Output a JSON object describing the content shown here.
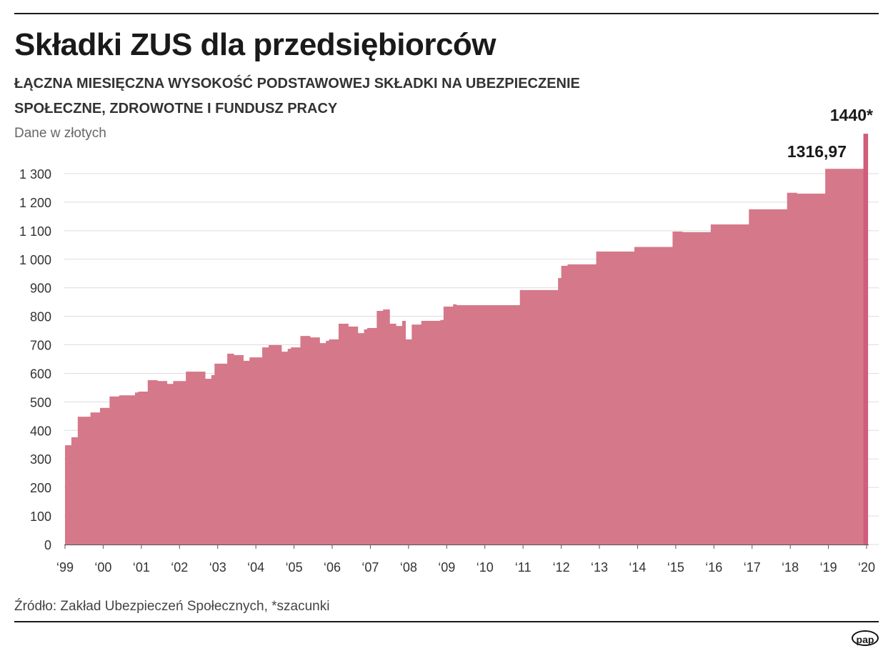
{
  "title": "Składki ZUS dla przedsiębiorców",
  "subtitle_line1": "ŁĄCZNA MIESIĘCZNA WYSOKOŚĆ PODSTAWOWEJ SKŁADKI NA UBEZPIECZENIE",
  "subtitle_line2": "SPOŁECZNE, ZDROWOTNE I FUNDUSZ PRACY",
  "unit": "Dane w złotych",
  "source": "Źródło: Zakład Ubezpieczeń Społecznych, *szacunki",
  "logo": "pap",
  "colors": {
    "fill": "#d5788a",
    "highlight": "#d05d7b",
    "grid": "#dddddd"
  },
  "chart_data": {
    "type": "area",
    "step": true,
    "ylim": [
      0,
      1300
    ],
    "yticks": [
      0,
      100,
      200,
      300,
      400,
      500,
      600,
      700,
      800,
      900,
      1000,
      1100,
      1200,
      1300
    ],
    "ytick_labels": [
      "0",
      "100",
      "200",
      "300",
      "400",
      "500",
      "600",
      "700",
      "800",
      "900",
      "1 000",
      "1 100",
      "1 200",
      "1 300"
    ],
    "xtick_labels": [
      "‘99",
      "‘00",
      "‘01",
      "‘02",
      "‘03",
      "‘04",
      "‘05",
      "‘06",
      "‘07",
      "‘08",
      "‘09",
      "‘10",
      "‘11",
      "‘12",
      "‘13",
      "‘14",
      "‘15",
      "‘16",
      "‘17",
      "‘18",
      "‘19",
      "‘20"
    ],
    "x_end": "2020-01",
    "grid": true,
    "points": [
      [
        "1999-01",
        348
      ],
      [
        "1999-03",
        376
      ],
      [
        "1999-05",
        448
      ],
      [
        "1999-09",
        463
      ],
      [
        "1999-12",
        479
      ],
      [
        "2000-03",
        519
      ],
      [
        "2000-06",
        523
      ],
      [
        "2000-11",
        533
      ],
      [
        "2000-12",
        536
      ],
      [
        "2001-03",
        576
      ],
      [
        "2001-06",
        573
      ],
      [
        "2001-09",
        563
      ],
      [
        "2001-11",
        573
      ],
      [
        "2002-03",
        606
      ],
      [
        "2002-09",
        581
      ],
      [
        "2002-11",
        594
      ],
      [
        "2002-12",
        634
      ],
      [
        "2003-04",
        669
      ],
      [
        "2003-06",
        664
      ],
      [
        "2003-09",
        644
      ],
      [
        "2003-11",
        656
      ],
      [
        "2004-03",
        691
      ],
      [
        "2004-05",
        699
      ],
      [
        "2004-09",
        676
      ],
      [
        "2004-11",
        686
      ],
      [
        "2004-12",
        691
      ],
      [
        "2005-03",
        731
      ],
      [
        "2005-06",
        726
      ],
      [
        "2005-09",
        706
      ],
      [
        "2005-11",
        714
      ],
      [
        "2005-12",
        719
      ],
      [
        "2006-03",
        774
      ],
      [
        "2006-06",
        764
      ],
      [
        "2006-09",
        741
      ],
      [
        "2006-11",
        754
      ],
      [
        "2006-12",
        759
      ],
      [
        "2007-03",
        819
      ],
      [
        "2007-05",
        824
      ],
      [
        "2007-07",
        774
      ],
      [
        "2007-09",
        766
      ],
      [
        "2007-11",
        784
      ],
      [
        "2007-12",
        719
      ],
      [
        "2008-02",
        771
      ],
      [
        "2008-05",
        784
      ],
      [
        "2008-11",
        787
      ],
      [
        "2008-12",
        834
      ],
      [
        "2009-03",
        842
      ],
      [
        "2009-04",
        839
      ],
      [
        "2010-12",
        892
      ],
      [
        "2011-12",
        934
      ],
      [
        "2012-01",
        977
      ],
      [
        "2012-03",
        982
      ],
      [
        "2012-12",
        1027
      ],
      [
        "2013-12",
        1043
      ],
      [
        "2014-12",
        1097
      ],
      [
        "2015-03",
        1095
      ],
      [
        "2015-12",
        1122
      ],
      [
        "2016-12",
        1175
      ],
      [
        "2017-12",
        1233
      ],
      [
        "2018-03",
        1230
      ],
      [
        "2018-12",
        1316.97
      ],
      [
        "2019-12",
        1440
      ]
    ],
    "annotations": [
      {
        "text": "1316,97",
        "value": 1316.97,
        "date": "2018-12"
      },
      {
        "text": "1440*",
        "value": 1440,
        "date": "2019-12"
      }
    ]
  }
}
